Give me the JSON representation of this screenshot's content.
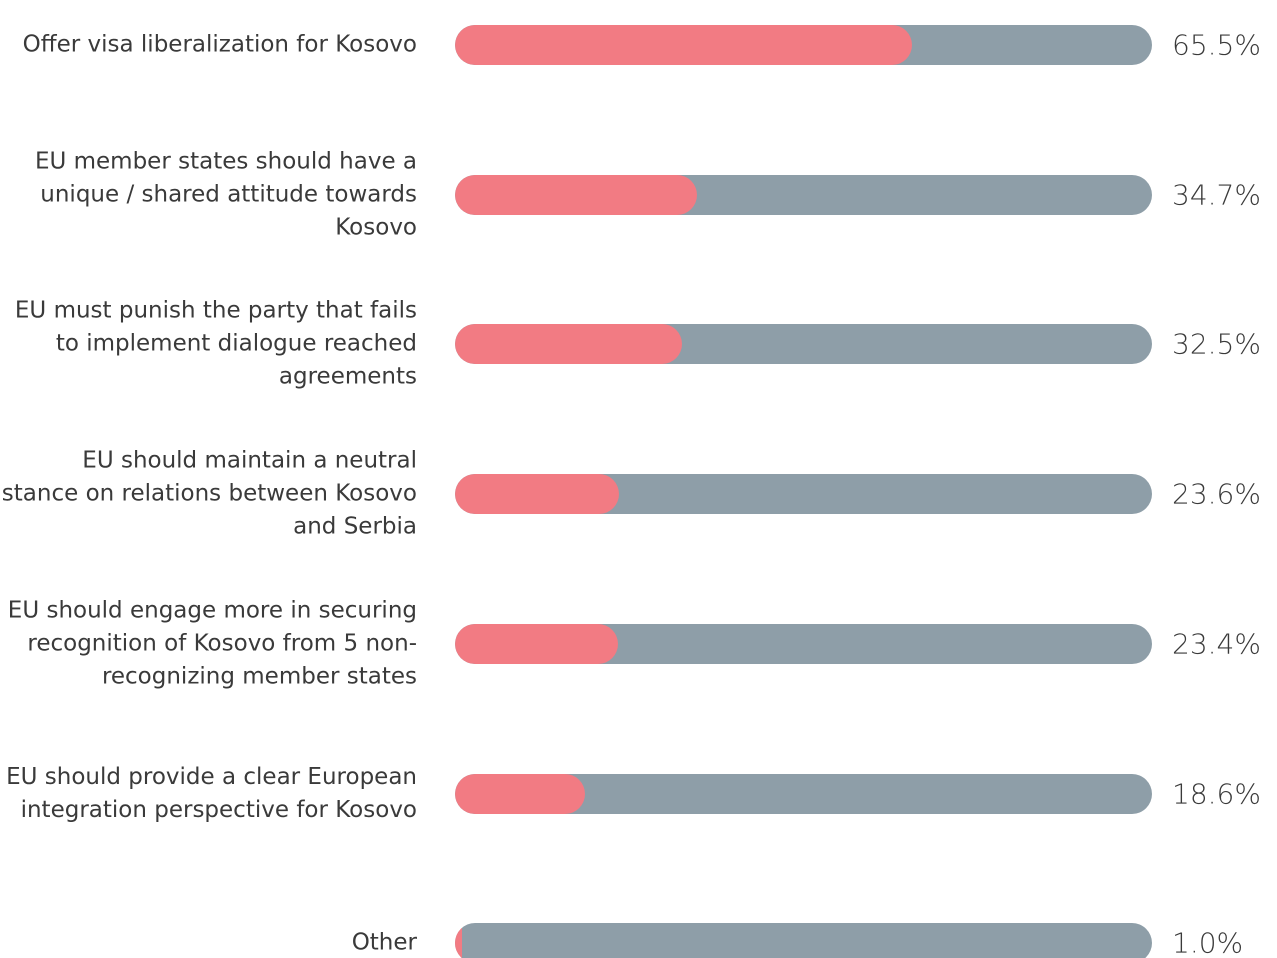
{
  "chart_data": {
    "type": "bar",
    "categories": [
      "Offer visa liberalization for Kosovo",
      "EU member states should have a unique / shared attitude towards Kosovo",
      "EU must punish the party that fails to implement dialogue reached agreements",
      "EU should maintain a neutral stance on relations between Kosovo and Serbia",
      "EU should engage more in securing recognition of Kosovo from 5 non-recognizing member states",
      "EU should provide a clear European integration perspective for Kosovo",
      "Other"
    ],
    "values": [
      65.5,
      34.7,
      32.5,
      23.6,
      23.4,
      18.6,
      1.0
    ],
    "value_labels": [
      "65.5%",
      "34.7%",
      "32.5%",
      "23.6%",
      "23.4%",
      "18.6%",
      "1.0%"
    ],
    "color": "#f27b83",
    "track_color": "#8e9ea8"
  }
}
